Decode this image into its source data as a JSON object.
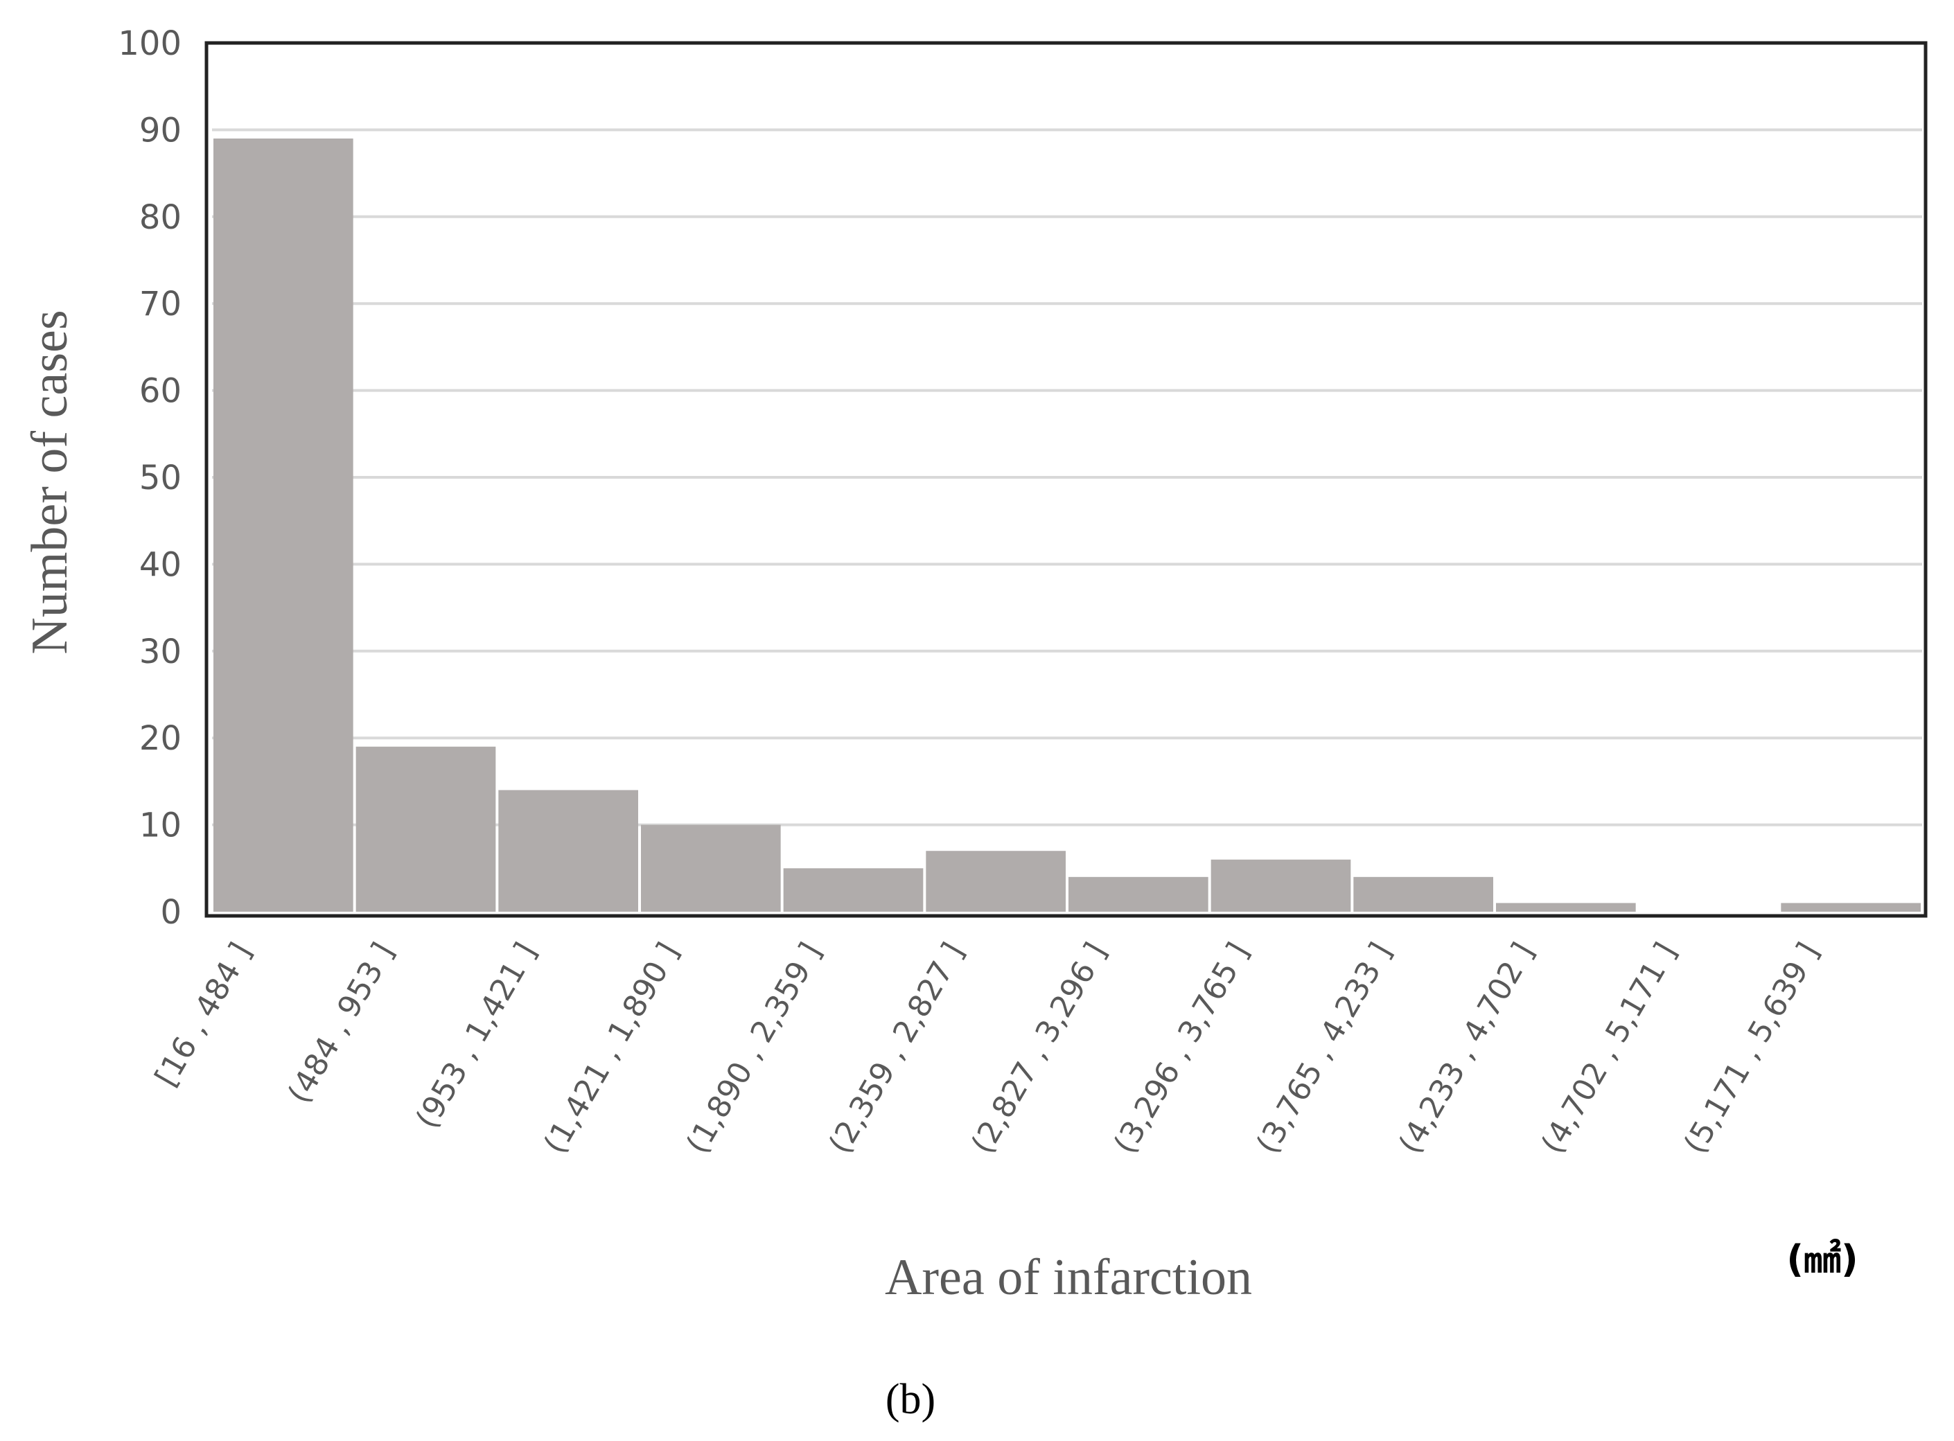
{
  "chart_data": {
    "type": "bar",
    "categories": [
      "[16 , 484 ]",
      "(484 , 953 ]",
      "(953 , 1,421 ]",
      "(1,421 , 1,890 ]",
      "(1,890 , 2,359 ]",
      "(2,359 , 2,827 ]",
      "(2,827 , 3,296 ]",
      "(3,296 , 3,765 ]",
      "(3,765 , 4,233 ]",
      "(4,233 , 4,702 ]",
      "(4,702 , 5,171 ]",
      "(5,171 , 5,639 ]"
    ],
    "values": [
      89,
      19,
      14,
      10,
      5,
      7,
      4,
      6,
      4,
      1,
      0,
      1
    ],
    "xlabel": "Area of infarction",
    "ylabel": "Number of cases",
    "unit": "(㎟)",
    "panel_label": "(b)",
    "ylim": [
      0,
      100
    ],
    "yticks": [
      0,
      10,
      20,
      30,
      40,
      50,
      60,
      70,
      80,
      90,
      100
    ],
    "grid": true,
    "legend": "none",
    "bar_color": "#b0acab",
    "gridline_color": "#d9d9d9"
  }
}
